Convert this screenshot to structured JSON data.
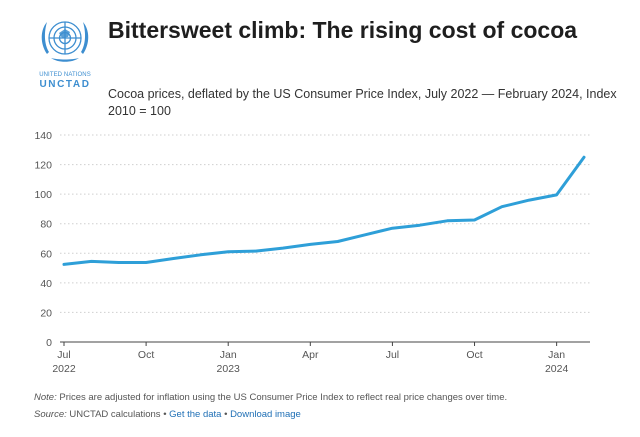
{
  "logo": {
    "line1": "UNITED NATIONS",
    "line2": "UNCTAD",
    "icon": "un-emblem-icon"
  },
  "title": "Bittersweet climb: The rising cost of cocoa",
  "subtitle": "Cocoa prices, deflated by the US Consumer Price Index, July 2022 — February 2024, Index 2010 = 100",
  "footer": {
    "note_label": "Note:",
    "note_text": "Prices are adjusted for inflation using the US Consumer Price Index to reflect real price changes over time.",
    "source_label": "Source:",
    "source_text": "UNCTAD calculations",
    "separator": "•",
    "link_get_data": "Get the data",
    "link_download": "Download image"
  },
  "chart_data": {
    "type": "line",
    "title": "",
    "xlabel": "",
    "ylabel": "",
    "ylim": [
      0,
      140
    ],
    "yticks": [
      0,
      20,
      40,
      60,
      80,
      100,
      120,
      140
    ],
    "grid": true,
    "color": "#2e9fd8",
    "x_dates": [
      "2022-07",
      "2022-08",
      "2022-09",
      "2022-10",
      "2022-11",
      "2022-12",
      "2023-01",
      "2023-02",
      "2023-03",
      "2023-04",
      "2023-05",
      "2023-06",
      "2023-07",
      "2023-08",
      "2023-09",
      "2023-10",
      "2023-11",
      "2023-12",
      "2024-01",
      "2024-02"
    ],
    "xtick_labels": [
      {
        "x": "2022-07",
        "label": "Jul",
        "sub": "2022"
      },
      {
        "x": "2022-10",
        "label": "Oct",
        "sub": ""
      },
      {
        "x": "2023-01",
        "label": "Jan",
        "sub": "2023"
      },
      {
        "x": "2023-04",
        "label": "Apr",
        "sub": ""
      },
      {
        "x": "2023-07",
        "label": "Jul",
        "sub": ""
      },
      {
        "x": "2023-10",
        "label": "Oct",
        "sub": ""
      },
      {
        "x": "2024-01",
        "label": "Jan",
        "sub": "2024"
      }
    ],
    "series": [
      {
        "values": [
          52.5,
          54.5,
          53.8,
          53.8,
          56.5,
          59.0,
          61.0,
          61.5,
          63.5,
          66.0,
          68.0,
          72.5,
          77.0,
          79.0,
          82.0,
          82.5,
          91.5,
          96.0,
          99.5,
          125.0
        ]
      }
    ]
  }
}
